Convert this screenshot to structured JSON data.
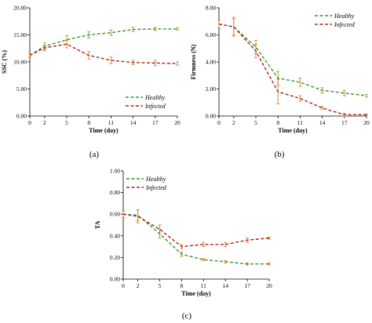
{
  "figure": {
    "panel_labels": [
      "(a)",
      "(b)",
      "(c)"
    ],
    "colors": {
      "healthy": "#2e9a2e",
      "infected": "#b22222",
      "error_bar": "#d4882a"
    }
  },
  "chart_data": [
    {
      "type": "line",
      "panel": "(a)",
      "xlabel": "Time (day)",
      "ylabel": "SSC (%)",
      "x": [
        0,
        2,
        5,
        8,
        11,
        14,
        17,
        20
      ],
      "x_ticks": [
        0,
        2,
        5,
        8,
        11,
        14,
        17,
        20
      ],
      "xlim": [
        0,
        20
      ],
      "ylim": [
        0,
        20
      ],
      "y_ticks": [
        "0.00",
        "5.00",
        "10.00",
        "15.00",
        "20.00"
      ],
      "legend": "bottom-right",
      "series": [
        {
          "name": "Healthy",
          "color": "#2e9a2e",
          "values": [
            11.2,
            12.9,
            14.1,
            15.0,
            15.4,
            16.0,
            16.1,
            16.1
          ],
          "errors": [
            0.3,
            0.6,
            0.8,
            0.6,
            0.5,
            0.4,
            0.3,
            0.2
          ]
        },
        {
          "name": "Infected",
          "color": "#b22222",
          "values": [
            11.2,
            12.6,
            13.3,
            11.2,
            10.3,
            9.9,
            9.8,
            9.7
          ],
          "errors": [
            0.3,
            0.5,
            0.7,
            0.7,
            0.6,
            0.4,
            0.5,
            0.3
          ]
        }
      ]
    },
    {
      "type": "line",
      "panel": "(b)",
      "xlabel": "Time (day)",
      "ylabel": "Firmness (N)",
      "x": [
        0,
        2,
        5,
        8,
        11,
        14,
        17,
        20
      ],
      "x_ticks": [
        0,
        2,
        5,
        8,
        11,
        14,
        17,
        20
      ],
      "xlim": [
        0,
        20
      ],
      "ylim": [
        0,
        8
      ],
      "y_ticks": [
        "0.00",
        "2.00",
        "4.00",
        "6.00",
        "8.00"
      ],
      "legend": "top-right",
      "series": [
        {
          "name": "Healthy",
          "color": "#2e9a2e",
          "values": [
            6.8,
            6.6,
            5.1,
            2.8,
            2.5,
            1.9,
            1.7,
            1.5
          ],
          "errors": [
            0.3,
            0.7,
            0.5,
            0.5,
            0.3,
            0.2,
            0.2,
            0.1
          ]
        },
        {
          "name": "Infected",
          "color": "#b22222",
          "values": [
            6.8,
            6.6,
            4.8,
            1.8,
            1.3,
            0.6,
            0.1,
            0.1
          ],
          "errors": [
            0.3,
            0.6,
            0.5,
            0.9,
            0.2,
            0.1,
            0.1,
            0.05
          ]
        }
      ]
    },
    {
      "type": "line",
      "panel": "(c)",
      "xlabel": "Time (day)",
      "ylabel": "TA",
      "x": [
        0,
        2,
        5,
        8,
        11,
        14,
        17,
        20
      ],
      "x_ticks": [
        0,
        2,
        5,
        8,
        11,
        14,
        17,
        20
      ],
      "xlim": [
        0,
        20
      ],
      "ylim": [
        0,
        1
      ],
      "y_ticks": [
        "0.00",
        "0.20",
        "0.40",
        "0.60",
        "0.80",
        "1.00"
      ],
      "legend": "top-left",
      "series": [
        {
          "name": "Healthy",
          "color": "#2e9a2e",
          "values": [
            0.6,
            0.59,
            0.42,
            0.23,
            0.18,
            0.16,
            0.14,
            0.14
          ],
          "errors": [
            0.03,
            0.05,
            0.04,
            0.02,
            0.01,
            0.01,
            0.01,
            0.01
          ]
        },
        {
          "name": "Infected",
          "color": "#b22222",
          "values": [
            0.6,
            0.58,
            0.46,
            0.3,
            0.32,
            0.32,
            0.36,
            0.38
          ],
          "errors": [
            0.03,
            0.06,
            0.04,
            0.02,
            0.02,
            0.02,
            0.02,
            0.01
          ]
        }
      ]
    }
  ]
}
